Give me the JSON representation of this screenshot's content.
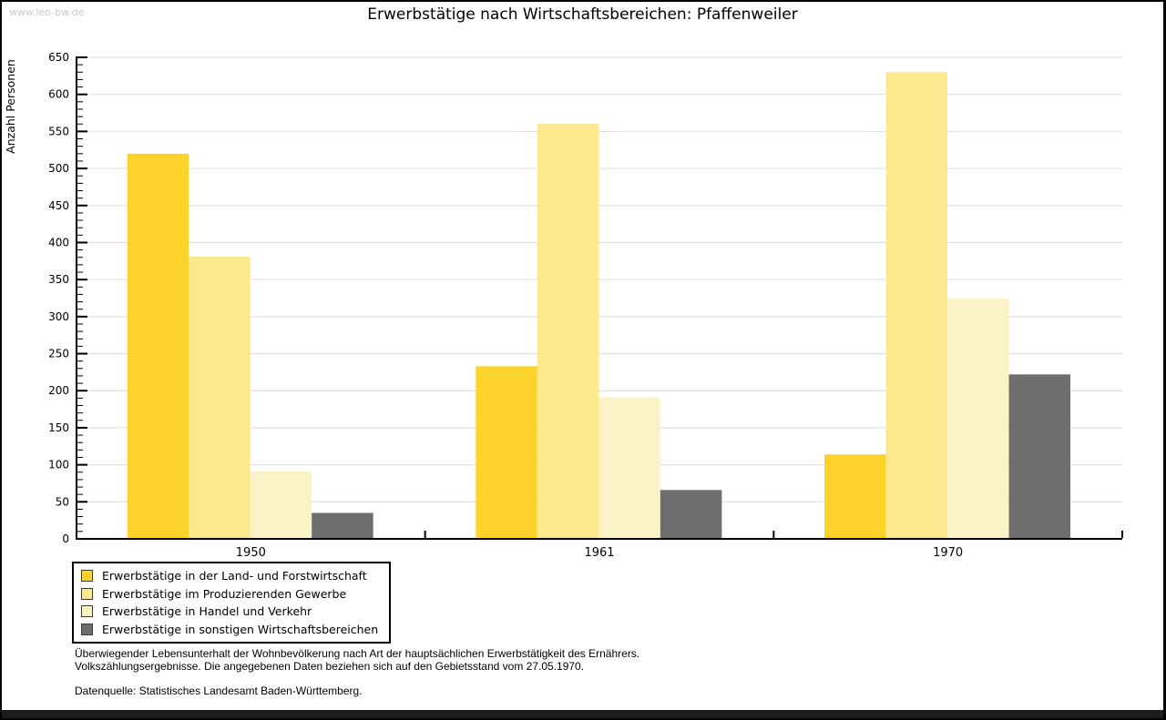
{
  "page": {
    "watermark": "www.leo-bw.de",
    "title": "Erwerbstätige nach Wirtschaftsbereichen: Pfaffenweiler"
  },
  "chart_data": {
    "type": "bar",
    "title": "Erwerbstätige nach Wirtschaftsbereichen: Pfaffenweiler",
    "xlabel": "",
    "ylabel": "Anzahl Personen",
    "categories": [
      "1950",
      "1961",
      "1970"
    ],
    "series": [
      {
        "name": "Erwerbstätige in der Land- und Forstwirtschaft",
        "color": "#FCD22B",
        "values": [
          520,
          233,
          114
        ]
      },
      {
        "name": "Erwerbstätige im Produzierenden Gewerbe",
        "color": "#FCE88D",
        "values": [
          381,
          560,
          630
        ]
      },
      {
        "name": "Erwerbstätige in Handel und Verkehr",
        "color": "#FBF3C7",
        "values": [
          91,
          191,
          325
        ]
      },
      {
        "name": "Erwerbstätige in sonstigen Wirtschaftsbereichen",
        "color": "#6E6E6E",
        "values": [
          35,
          66,
          222
        ]
      }
    ],
    "ylim": [
      0,
      650
    ],
    "ytick_step": 50,
    "yminor_step": 10,
    "grid": true,
    "gridline_color": "#DCDCDC",
    "axis_color": "#000000",
    "legend_position": "bottom-left"
  },
  "footnotes": {
    "line1": "Überwiegender Lebensunterhalt der Wohnbevölkerung nach Art der hauptsächlichen Erwerbstätigkeit des Ernährers.",
    "line2": "Volkszählungsergebnisse. Die angegebenen Daten beziehen sich auf den Gebietsstand vom 27.05.1970.",
    "source": "Datenquelle: Statistisches Landesamt Baden-Württemberg."
  }
}
